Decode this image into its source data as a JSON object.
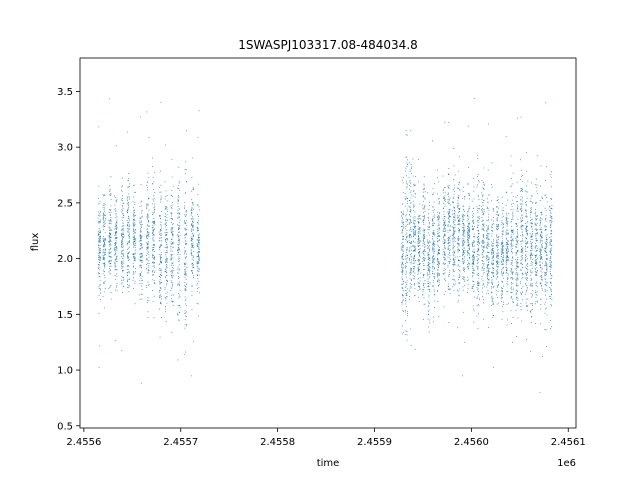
{
  "chart_data": {
    "type": "scatter",
    "title": "1SWASPJ103317.08-484034.8",
    "xlabel": "time",
    "ylabel": "flux",
    "x_offset_label": "1e6",
    "xlim": [
      2455596,
      2456108
    ],
    "ylim": [
      0.48,
      3.8
    ],
    "x_ticks": [
      2455600,
      2455700,
      2455800,
      2455900,
      2456000,
      2456100
    ],
    "x_tick_labels": [
      "2.4556",
      "2.4557",
      "2.4558",
      "2.4559",
      "2.4560",
      "2.4561"
    ],
    "y_ticks": [
      0.5,
      1.0,
      1.5,
      2.0,
      2.5,
      3.0,
      3.5
    ],
    "y_tick_labels": [
      "0.5",
      "1.0",
      "1.5",
      "2.0",
      "2.5",
      "3.0",
      "3.5"
    ],
    "grid": false,
    "marker_color": "#1f77b4",
    "series": [
      {
        "night_times": [
          2455616,
          2455621,
          2455627,
          2455633,
          2455640,
          2455646,
          2455652,
          2455659,
          2455666,
          2455672,
          2455679,
          2455685,
          2455691,
          2455698,
          2455705,
          2455712,
          2455718,
          2455929,
          2455933,
          2455937,
          2455941,
          2455946,
          2455951,
          2455956,
          2455961,
          2455966,
          2455972,
          2455977,
          2455982,
          2455987,
          2455992,
          2455997,
          2456002,
          2456007,
          2456012,
          2456017,
          2456022,
          2456027,
          2456032,
          2456037,
          2456042,
          2456047,
          2456052,
          2456057,
          2456062,
          2456067,
          2456072,
          2456077,
          2456082
        ],
        "night_means": [
          2.1,
          2.15,
          2.2,
          2.1,
          2.15,
          2.2,
          2.2,
          2.1,
          2.2,
          2.2,
          2.1,
          2.05,
          2.1,
          2.1,
          2.05,
          2.2,
          2.1,
          2.05,
          2.1,
          2.2,
          2.2,
          2.1,
          2.15,
          2.0,
          2.1,
          2.15,
          2.2,
          2.25,
          2.2,
          2.2,
          2.15,
          2.2,
          2.1,
          2.1,
          2.15,
          2.1,
          2.0,
          2.1,
          2.05,
          2.1,
          2.1,
          2.05,
          2.15,
          2.1,
          2.05,
          2.1,
          2.1,
          2.05,
          2.1
        ],
        "night_spreads": [
          0.22,
          0.2,
          0.22,
          0.2,
          0.23,
          0.25,
          0.2,
          0.22,
          0.28,
          0.24,
          0.28,
          0.26,
          0.24,
          0.32,
          0.4,
          0.25,
          0.22,
          0.3,
          0.38,
          0.3,
          0.25,
          0.22,
          0.28,
          0.3,
          0.24,
          0.22,
          0.22,
          0.26,
          0.24,
          0.26,
          0.24,
          0.22,
          0.24,
          0.3,
          0.25,
          0.22,
          0.24,
          0.25,
          0.24,
          0.25,
          0.28,
          0.26,
          0.3,
          0.26,
          0.28,
          0.3,
          0.26,
          0.3,
          0.3
        ],
        "points_per_night": 110
      }
    ]
  }
}
